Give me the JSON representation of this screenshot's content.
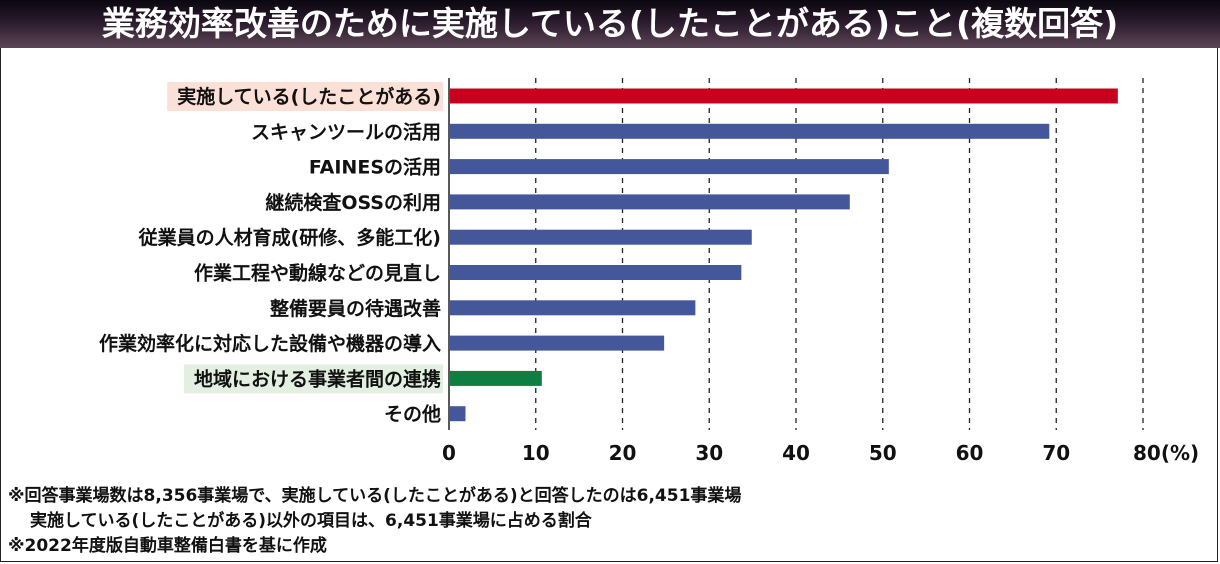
{
  "chart_data": {
    "type": "bar",
    "orientation": "horizontal",
    "title": "業務効率改善のために実施している(したことがある)こと(複数回答)",
    "categories": [
      "実施している(したことがある)",
      "スキャンツールの活用",
      "FAINESの活用",
      "継続検査OSSの利用",
      "従業員の人材育成(研修、多能工化)",
      "作業工程や動線などの見直し",
      "整備要員の待遇改善",
      "作業効率化に対応した設備や機器の導入",
      "地域における事業者間の連携",
      "その他"
    ],
    "values": [
      77.1,
      69.2,
      50.7,
      46.2,
      34.9,
      33.7,
      28.4,
      24.8,
      10.7,
      1.9
    ],
    "bar_colors": [
      "#c8001e",
      "#44579a",
      "#44579a",
      "#44579a",
      "#44579a",
      "#44579a",
      "#44579a",
      "#44579a",
      "#0d8040",
      "#44579a"
    ],
    "label_highlights": [
      "#fbe0d8",
      null,
      null,
      null,
      null,
      null,
      null,
      null,
      "#e3efe1",
      null
    ],
    "xlabel": "",
    "ylabel": "",
    "xlim": [
      0,
      80
    ],
    "x_ticks": [
      0,
      10,
      20,
      30,
      40,
      50,
      60,
      70,
      80
    ],
    "x_tick_labels": [
      "0",
      "10",
      "20",
      "30",
      "40",
      "50",
      "60",
      "70",
      "80(%)"
    ],
    "grid": "vertical-dashed"
  },
  "notes": [
    "※回答事業場数は8,356事業場で、実施している(したことがある)と回答したのは6,451事業場",
    "実施している(したことがある)以外の項目は、6,451事業場に占める割合",
    "※2022年度版自動車整備白書を基に作成"
  ]
}
